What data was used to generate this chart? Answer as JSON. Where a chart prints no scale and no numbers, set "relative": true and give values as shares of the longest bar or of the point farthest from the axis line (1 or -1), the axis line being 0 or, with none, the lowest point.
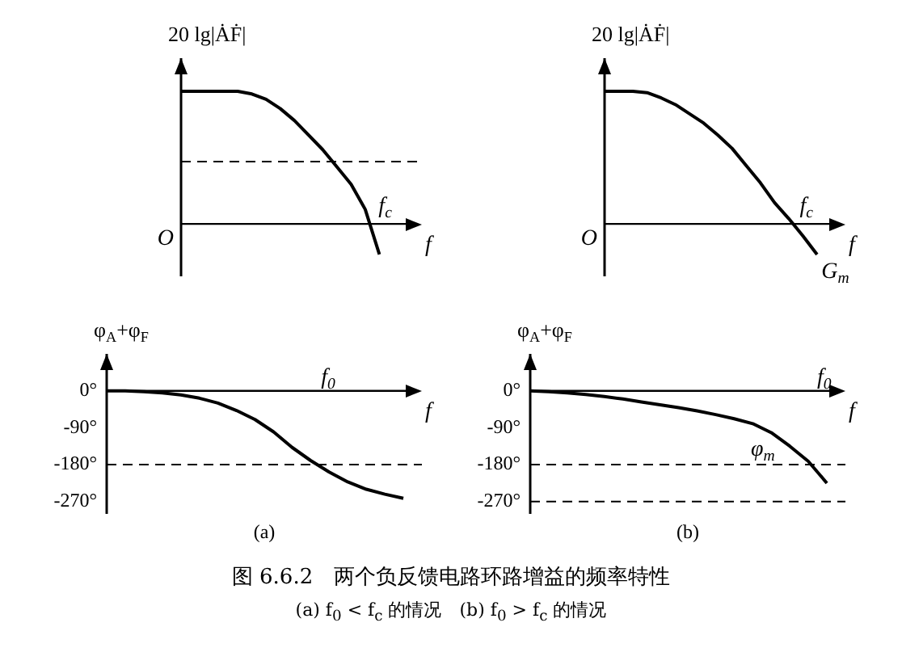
{
  "chart_data": [
    {
      "type": "line",
      "ylabel": "20 lg|ȦḞ|",
      "xlabel": "f",
      "relative": true,
      "tick_labels": false,
      "line_style": "solid",
      "categories": [
        null,
        null,
        null,
        null,
        null,
        null,
        null,
        null,
        null,
        null,
        null,
        null,
        null,
        null,
        null,
        null,
        null,
        null
      ],
      "series": [
        {
          "color": "#000000",
          "values": [
            1,
            1,
            1,
            1,
            1,
            0.98,
            0.94,
            0.87,
            0.78,
            0.67,
            0.56,
            0.43,
            0.3,
            0.11,
            -0.23,
            null,
            null,
            null
          ]
        }
      ],
      "annotations": [
        "O",
        "f$_{c}$"
      ],
      "ref_lines": [
        {
          "axis": "y",
          "value": 0.47
        }
      ]
    },
    {
      "type": "line",
      "ylabel": "φ$_{A}$+φ$_{F}$",
      "xlabel": "f",
      "ylim": [
        -300,
        90
      ],
      "tick_labels": "y",
      "line_style": "solid",
      "categories": [
        null,
        null,
        null,
        null,
        null,
        null,
        null,
        null,
        null,
        null,
        null,
        null,
        null,
        null,
        null,
        null,
        null,
        null
      ],
      "yticks": [
        {
          "value": 0,
          "label": "0°"
        },
        {
          "value": -90,
          "label": "-90°"
        },
        {
          "value": -180,
          "label": "-180°"
        },
        {
          "value": -270,
          "label": "-270°"
        }
      ],
      "series": [
        {
          "color": "#000000",
          "values": [
            0,
            0,
            -2,
            -5,
            -10,
            -18,
            -30,
            -48,
            -70,
            -100,
            -138,
            -170,
            -198,
            -222,
            -240,
            -252,
            -262,
            null
          ]
        }
      ],
      "annotations": [
        "f$_{0}$",
        "(a)"
      ],
      "ref_lines": [
        {
          "axis": "y",
          "value": -180
        }
      ]
    },
    {
      "type": "line",
      "ylabel": "20 lg|ȦḞ|",
      "xlabel": "f",
      "relative": true,
      "tick_labels": false,
      "line_style": "solid",
      "categories": [
        null,
        null,
        null,
        null,
        null,
        null,
        null,
        null,
        null,
        null,
        null,
        null,
        null,
        null,
        null,
        null,
        null,
        null
      ],
      "series": [
        {
          "color": "#000000",
          "values": [
            1,
            1,
            1,
            0.99,
            0.95,
            0.9,
            0.83,
            0.76,
            0.67,
            0.57,
            0.44,
            0.31,
            0.16,
            0.04,
            -0.09,
            -0.23,
            null,
            null
          ]
        }
      ],
      "annotations": [
        "O",
        "f$_{c}$",
        "G$_{m}$"
      ]
    },
    {
      "type": "line",
      "ylabel": "φ$_{A}$+φ$_{F}$",
      "xlabel": "f",
      "ylim": [
        -300,
        90
      ],
      "tick_labels": "y",
      "line_style": "solid",
      "categories": [
        null,
        null,
        null,
        null,
        null,
        null,
        null,
        null,
        null,
        null,
        null,
        null,
        null,
        null,
        null,
        null,
        null,
        null
      ],
      "yticks": [
        {
          "value": 0,
          "label": "0°"
        },
        {
          "value": -90,
          "label": "-90°"
        },
        {
          "value": -180,
          "label": "-180°"
        },
        {
          "value": -270,
          "label": "-270°"
        }
      ],
      "series": [
        {
          "color": "#000000",
          "values": [
            0,
            -2,
            -5,
            -9,
            -14,
            -20,
            -27,
            -34,
            -41,
            -49,
            -58,
            -68,
            -80,
            -102,
            -135,
            -172,
            -225,
            null
          ]
        }
      ],
      "annotations": [
        "f$_{0}$",
        "φ$_{m}$",
        "(b)"
      ],
      "ref_lines": [
        {
          "axis": "y",
          "value": -180
        },
        {
          "axis": "y",
          "value": -270
        }
      ]
    },
    {
      "type": "other",
      "title": "图 6.6.2　两个负反馈电路环路增益的频率特性",
      "subtitle": "(a) f$_{0}$ < f$_{c}$ 的情况　(b) f$_{0}$ > f$_{c}$ 的情况"
    }
  ]
}
